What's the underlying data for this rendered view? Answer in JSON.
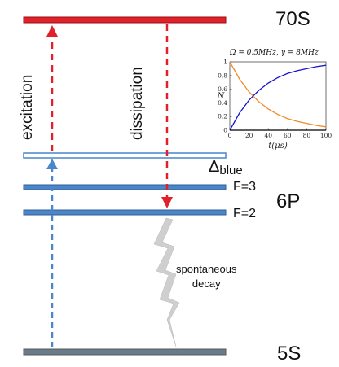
{
  "levels": {
    "state_70S": "70S",
    "state_6P": "6P",
    "state_5S": "5S",
    "hyperfine_F3": "F=3",
    "hyperfine_F2": "F=2"
  },
  "detuning": {
    "symbol": "Δ",
    "subscript": "blue"
  },
  "processes": {
    "excitation": "excitation",
    "dissipation": "dissipation",
    "decay_line1": "spontaneous",
    "decay_line2": "decay"
  },
  "colors": {
    "rydberg_level": "#e0202a",
    "p_level": "#4a86c8",
    "ground_level": "#6d7b86",
    "excitation_arrow": "#e0202a",
    "blue_arrow": "#4a86c8",
    "decay_bolt": "#cfcfcf",
    "curve_rising": "#1414d0",
    "curve_falling": "#f08c28"
  },
  "chart_data": {
    "type": "line",
    "title": "Ω = 0.5MHz, γ = 8MHz",
    "xlabel": "t(μs)",
    "ylabel": "N",
    "xlim": [
      0,
      100
    ],
    "ylim": [
      0,
      1
    ],
    "xticks": [
      "0",
      "20",
      "40",
      "60",
      "80",
      "100"
    ],
    "yticks": [
      "0",
      "0.2",
      "0.4",
      "0.6",
      "0.8",
      "1"
    ],
    "series": [
      {
        "color": "#1414d0",
        "x": [
          0,
          10,
          20,
          30,
          40,
          50,
          60,
          70,
          80,
          90,
          100
        ],
        "values": [
          0,
          0.25,
          0.44,
          0.58,
          0.69,
          0.77,
          0.83,
          0.87,
          0.9,
          0.93,
          0.95
        ]
      },
      {
        "color": "#f08c28",
        "x": [
          0,
          10,
          20,
          30,
          40,
          50,
          60,
          70,
          80,
          90,
          100
        ],
        "values": [
          1,
          0.75,
          0.56,
          0.42,
          0.31,
          0.23,
          0.17,
          0.13,
          0.1,
          0.07,
          0.05
        ]
      },
      {
        "color": "#000000",
        "x": [
          0,
          100
        ],
        "values": [
          0,
          0
        ]
      }
    ]
  }
}
